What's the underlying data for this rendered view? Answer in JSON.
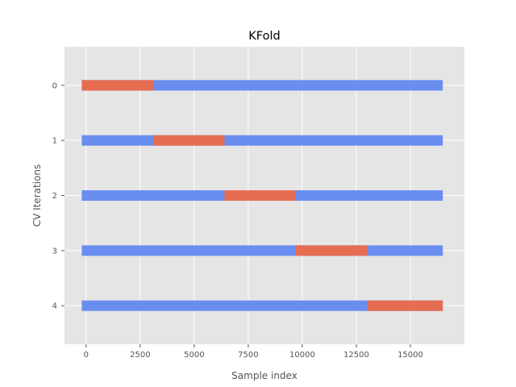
{
  "chart_data": {
    "type": "bar",
    "orientation": "horizontal-segmented",
    "title": "KFold",
    "xlabel": "Sample index",
    "ylabel": "CV Iterations",
    "xlim": [
      -1000,
      17500
    ],
    "ylim": [
      -0.7,
      4.7
    ],
    "y_inverted": true,
    "grid": true,
    "background": "#e5e5e5",
    "xticks": [
      0,
      2500,
      5000,
      7500,
      10000,
      12500,
      15000
    ],
    "xtick_labels": [
      "0",
      "2500",
      "5000",
      "7500",
      "10000",
      "12500",
      "15000"
    ],
    "yticks": [
      0,
      1,
      2,
      3,
      4
    ],
    "ytick_labels": [
      "0",
      "1",
      "2",
      "3",
      "4"
    ],
    "colors": {
      "train": "#6a8ef0",
      "test": "#e66d52"
    },
    "row_start": -200,
    "row_end": 16500,
    "iterations": [
      {
        "index": 0,
        "test_start": -200,
        "test_end": 3100
      },
      {
        "index": 1,
        "test_start": 3100,
        "test_end": 6400
      },
      {
        "index": 2,
        "test_start": 6400,
        "test_end": 9700
      },
      {
        "index": 3,
        "test_start": 9700,
        "test_end": 13000
      },
      {
        "index": 4,
        "test_start": 13000,
        "test_end": 16500
      }
    ]
  }
}
